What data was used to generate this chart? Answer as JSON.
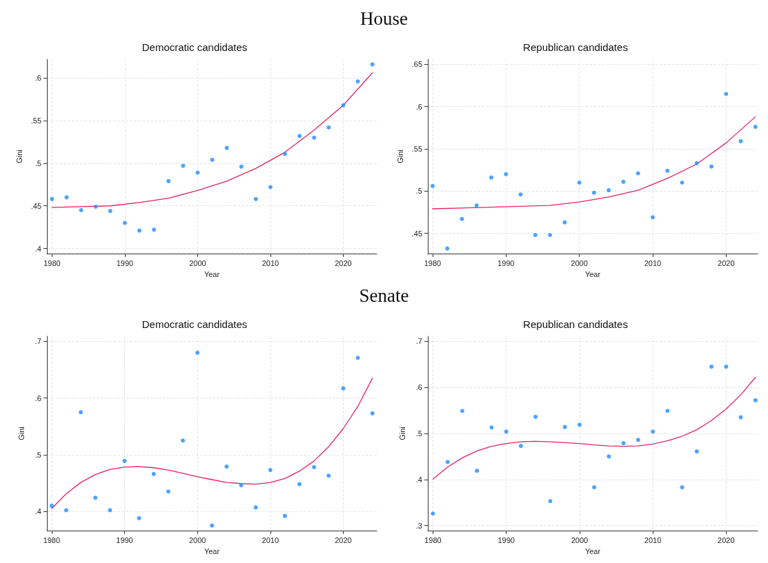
{
  "chart_data": [
    {
      "type": "scatter",
      "title": "Democratic candidates",
      "xlabel": "Year",
      "ylabel": "Gini",
      "annotations": [
        "House"
      ],
      "grid": true,
      "xlim": [
        1979.3,
        2024.6
      ],
      "xticks": [
        1980,
        1990,
        2000,
        2010,
        2020
      ],
      "ylim": [
        0.394,
        0.622
      ],
      "yticks": [
        {
          "value": 0.4,
          "label": ".4"
        },
        {
          "value": 0.45,
          "label": ".45"
        },
        {
          "value": 0.5,
          "label": ".5"
        },
        {
          "value": 0.55,
          "label": ".55"
        },
        {
          "value": 0.6,
          "label": ".6"
        }
      ],
      "series": [
        {
          "marker": "circle",
          "color": "#1e8cff",
          "x": [
            1980,
            1982,
            1984,
            1986,
            1988,
            1990,
            1992,
            1994,
            1996,
            1998,
            2000,
            2002,
            2004,
            2006,
            2008,
            2010,
            2012,
            2014,
            2016,
            2018,
            2020,
            2022,
            2024
          ],
          "values": [
            0.458,
            0.46,
            0.445,
            0.449,
            0.444,
            0.43,
            0.421,
            0.422,
            0.479,
            0.497,
            0.489,
            0.504,
            0.518,
            0.496,
            0.458,
            0.472,
            0.511,
            0.532,
            0.53,
            0.542,
            0.568,
            0.596,
            0.616
          ]
        },
        {
          "type": "line",
          "color": "#e0245e",
          "x": [
            1980,
            1984,
            1988,
            1992,
            1996,
            2000,
            2004,
            2008,
            2012,
            2016,
            2020,
            2024
          ],
          "values": [
            0.448,
            0.449,
            0.45,
            0.454,
            0.459,
            0.468,
            0.479,
            0.494,
            0.513,
            0.539,
            0.568,
            0.606
          ]
        }
      ]
    },
    {
      "type": "scatter",
      "title": "Republican candidates",
      "xlabel": "Year",
      "ylabel": "Gini",
      "grid": true,
      "xlim": [
        1979.35,
        2024.3
      ],
      "xticks": [
        1980,
        1990,
        2000,
        2010,
        2020
      ],
      "ylim": [
        0.426,
        0.656
      ],
      "yticks": [
        {
          "value": 0.45,
          "label": ".45"
        },
        {
          "value": 0.5,
          "label": ".5"
        },
        {
          "value": 0.55,
          "label": ".55"
        },
        {
          "value": 0.6,
          "label": ".6"
        },
        {
          "value": 0.65,
          "label": ".65"
        }
      ],
      "series": [
        {
          "marker": "circle",
          "color": "#1e8cff",
          "x": [
            1980,
            1982,
            1984,
            1986,
            1988,
            1990,
            1992,
            1994,
            1996,
            1998,
            2000,
            2002,
            2004,
            2006,
            2008,
            2010,
            2012,
            2014,
            2016,
            2018,
            2020,
            2022,
            2024
          ],
          "values": [
            0.506,
            0.432,
            0.467,
            0.483,
            0.516,
            0.52,
            0.496,
            0.448,
            0.448,
            0.463,
            0.51,
            0.498,
            0.501,
            0.511,
            0.521,
            0.469,
            0.524,
            0.51,
            0.533,
            0.529,
            0.615,
            0.559,
            0.576
          ]
        },
        {
          "type": "line",
          "color": "#e0245e",
          "x": [
            1980,
            1984,
            1988,
            1992,
            1996,
            2000,
            2004,
            2008,
            2012,
            2016,
            2020,
            2024
          ],
          "values": [
            0.479,
            0.48,
            0.481,
            0.482,
            0.483,
            0.487,
            0.493,
            0.501,
            0.515,
            0.532,
            0.557,
            0.588
          ]
        }
      ]
    },
    {
      "type": "scatter",
      "title": "Democratic candidates",
      "xlabel": "Year",
      "ylabel": "Gini",
      "annotations": [
        "Senate"
      ],
      "grid": true,
      "xlim": [
        1979.35,
        2024.6
      ],
      "xticks": [
        1980,
        1990,
        2000,
        2010,
        2020
      ],
      "ylim": [
        0.366,
        0.709
      ],
      "yticks": [
        {
          "value": 0.4,
          "label": ".4"
        },
        {
          "value": 0.5,
          "label": ".5"
        },
        {
          "value": 0.6,
          "label": ".6"
        },
        {
          "value": 0.7,
          "label": ".7"
        }
      ],
      "series": [
        {
          "marker": "circle",
          "color": "#1e8cff",
          "x": [
            1980,
            1982,
            1984,
            1986,
            1988,
            1990,
            1992,
            1994,
            1996,
            1998,
            2000,
            2002,
            2004,
            2006,
            2008,
            2010,
            2012,
            2014,
            2016,
            2018,
            2020,
            2022,
            2024
          ],
          "values": [
            0.41,
            0.402,
            0.575,
            0.424,
            0.402,
            0.489,
            0.388,
            0.466,
            0.435,
            0.525,
            0.68,
            0.375,
            0.479,
            0.446,
            0.407,
            0.473,
            0.392,
            0.448,
            0.478,
            0.463,
            0.617,
            0.671,
            0.573
          ]
        },
        {
          "type": "line",
          "color": "#e0245e",
          "x": [
            1980,
            1982,
            1984,
            1986,
            1988,
            1990,
            1992,
            1994,
            1996,
            1998,
            2000,
            2002,
            2004,
            2006,
            2008,
            2010,
            2012,
            2014,
            2016,
            2018,
            2020,
            2022,
            2024
          ],
          "values": [
            0.405,
            0.431,
            0.451,
            0.465,
            0.474,
            0.478,
            0.479,
            0.477,
            0.473,
            0.467,
            0.461,
            0.456,
            0.451,
            0.449,
            0.448,
            0.451,
            0.458,
            0.471,
            0.489,
            0.514,
            0.546,
            0.585,
            0.635
          ]
        }
      ]
    },
    {
      "type": "scatter",
      "title": "Republican candidates",
      "xlabel": "Year",
      "ylabel": "Gini",
      "grid": true,
      "xlim": [
        1979.3,
        2024.3
      ],
      "xticks": [
        1980,
        1990,
        2000,
        2010,
        2020
      ],
      "ylim": [
        0.289,
        0.711
      ],
      "yticks": [
        {
          "value": 0.3,
          "label": ".3"
        },
        {
          "value": 0.4,
          "label": ".4"
        },
        {
          "value": 0.5,
          "label": ".5"
        },
        {
          "value": 0.6,
          "label": ".6"
        },
        {
          "value": 0.7,
          "label": ".7"
        }
      ],
      "series": [
        {
          "marker": "circle",
          "color": "#1e8cff",
          "x": [
            1980,
            1982,
            1984,
            1986,
            1988,
            1990,
            1992,
            1994,
            1996,
            1998,
            2000,
            2002,
            2004,
            2006,
            2008,
            2010,
            2012,
            2014,
            2016,
            2018,
            2020,
            2022,
            2024
          ],
          "values": [
            0.326,
            0.438,
            0.549,
            0.419,
            0.513,
            0.504,
            0.473,
            0.536,
            0.353,
            0.514,
            0.519,
            0.383,
            0.45,
            0.479,
            0.486,
            0.504,
            0.549,
            0.383,
            0.461,
            0.645,
            0.645,
            0.535,
            0.572
          ]
        },
        {
          "type": "line",
          "color": "#e0245e",
          "x": [
            1980,
            1982,
            1984,
            1986,
            1988,
            1990,
            1992,
            1994,
            1996,
            1998,
            2000,
            2002,
            2004,
            2006,
            2008,
            2010,
            2012,
            2014,
            2016,
            2018,
            2020,
            2022,
            2024
          ],
          "values": [
            0.401,
            0.427,
            0.447,
            0.462,
            0.472,
            0.478,
            0.482,
            0.483,
            0.482,
            0.48,
            0.478,
            0.475,
            0.473,
            0.472,
            0.473,
            0.477,
            0.484,
            0.494,
            0.508,
            0.528,
            0.553,
            0.584,
            0.622
          ]
        }
      ]
    }
  ]
}
